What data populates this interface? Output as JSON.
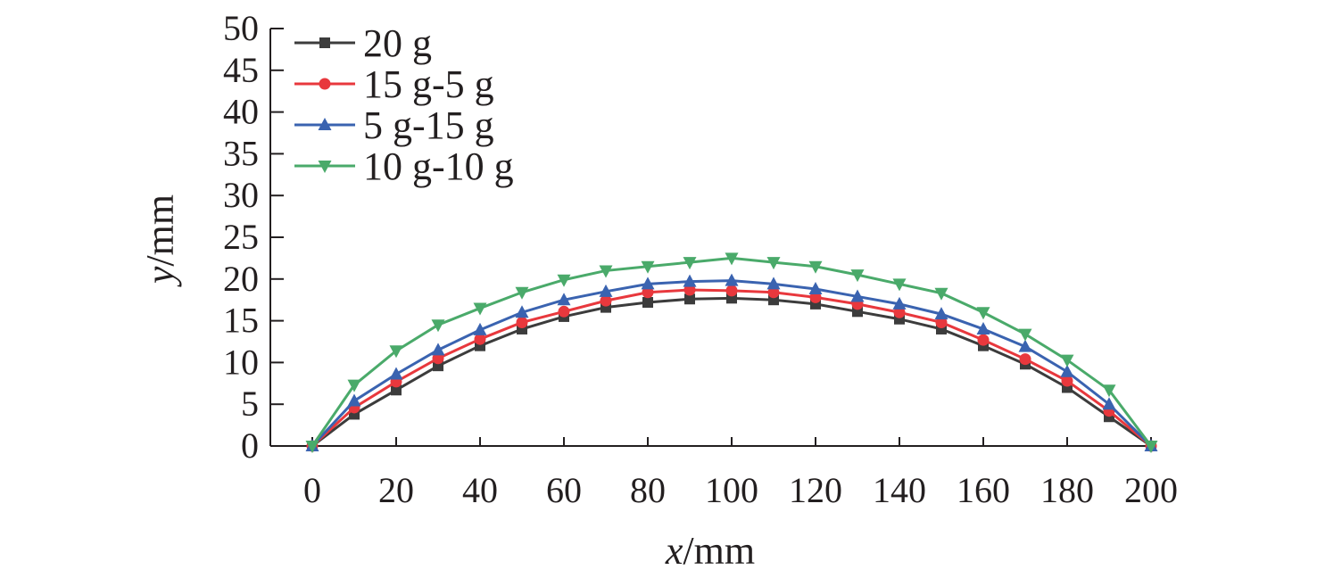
{
  "chart_data": {
    "type": "line",
    "xlabel_var": "x",
    "xlabel_unit": "/mm",
    "ylabel_var": "y",
    "ylabel_unit": "/mm",
    "xlim": [
      0,
      200
    ],
    "ylim": [
      0,
      50
    ],
    "xticks": [
      0,
      20,
      40,
      60,
      80,
      100,
      120,
      140,
      160,
      180,
      200
    ],
    "yticks": [
      0,
      5,
      10,
      15,
      20,
      25,
      30,
      35,
      40,
      45,
      50
    ],
    "grid": false,
    "legend_position": "top-left",
    "x": [
      0,
      10,
      20,
      30,
      40,
      50,
      60,
      70,
      80,
      90,
      100,
      110,
      120,
      130,
      140,
      150,
      160,
      170,
      180,
      190,
      200
    ],
    "series": [
      {
        "name": "20 g",
        "color": "#3c3c3c",
        "marker": "square",
        "values": [
          0,
          3.8,
          6.7,
          9.6,
          12.0,
          14.0,
          15.5,
          16.6,
          17.2,
          17.6,
          17.7,
          17.5,
          17.0,
          16.1,
          15.2,
          14.0,
          12.0,
          9.8,
          7.0,
          3.5,
          0
        ]
      },
      {
        "name": "15 g-5 g",
        "color": "#e8383d",
        "marker": "circle",
        "values": [
          0,
          4.6,
          7.7,
          10.5,
          12.8,
          14.8,
          16.1,
          17.4,
          18.4,
          18.7,
          18.6,
          18.4,
          17.8,
          17.0,
          16.0,
          14.8,
          12.7,
          10.4,
          7.8,
          4.2,
          0
        ]
      },
      {
        "name": "5 g-15 g",
        "color": "#3a63b0",
        "marker": "triangle-up",
        "values": [
          0,
          5.4,
          8.6,
          11.5,
          13.9,
          16.0,
          17.5,
          18.5,
          19.4,
          19.7,
          19.8,
          19.4,
          18.8,
          17.9,
          17.0,
          15.8,
          14.0,
          11.9,
          8.9,
          5.0,
          0
        ]
      },
      {
        "name": "10 g-10 g",
        "color": "#4aaa6a",
        "marker": "triangle-down",
        "values": [
          0,
          7.3,
          11.4,
          14.5,
          16.5,
          18.4,
          19.9,
          21.0,
          21.5,
          22.0,
          22.5,
          22.0,
          21.5,
          20.5,
          19.4,
          18.3,
          16.0,
          13.4,
          10.3,
          6.7,
          0
        ]
      }
    ]
  }
}
